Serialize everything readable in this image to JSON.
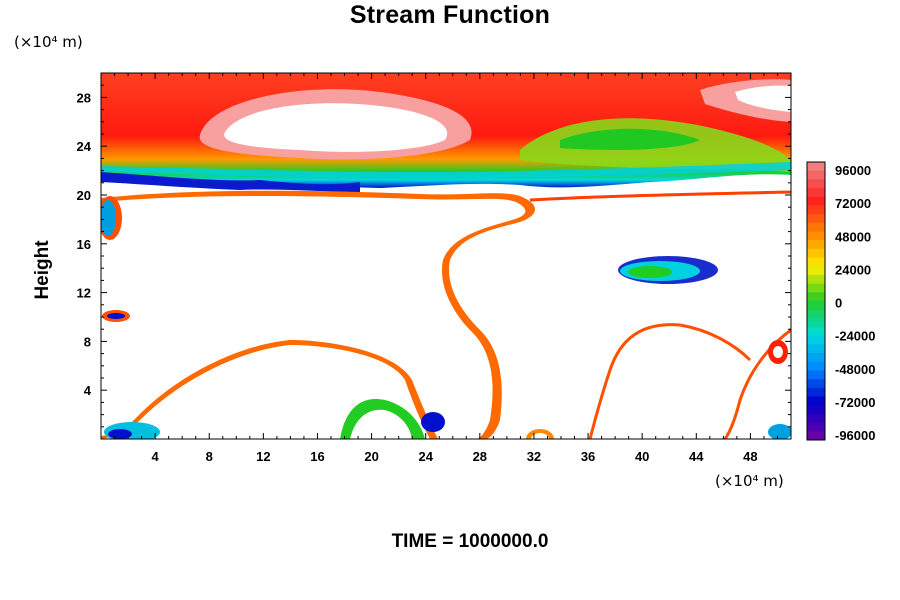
{
  "chart_data": {
    "type": "contour",
    "title": "Stream Function",
    "ylabel": "Height",
    "y_unit": "(×10⁴ m)",
    "x_unit": "(×10⁴ m)",
    "footer": "TIME = 1000000.0",
    "xlim": [
      0,
      51
    ],
    "ylim": [
      0,
      30
    ],
    "x_ticks": [
      "4",
      "8",
      "12",
      "16",
      "20",
      "24",
      "28",
      "32",
      "36",
      "40",
      "44",
      "48"
    ],
    "y_ticks": [
      "4",
      "8",
      "12",
      "16",
      "20",
      "24",
      "28"
    ],
    "colorbar": {
      "range": [
        -96000,
        96000
      ],
      "labels": [
        "96000",
        "72000",
        "48000",
        "24000",
        "0",
        "-24000",
        "-48000",
        "-72000",
        "-96000"
      ],
      "colors": [
        "#f08080",
        "#ff2020",
        "#ff8800",
        "#ffee00",
        "#22cc22",
        "#00dddd",
        "#0088ff",
        "#0000cc",
        "#6600aa"
      ]
    }
  }
}
